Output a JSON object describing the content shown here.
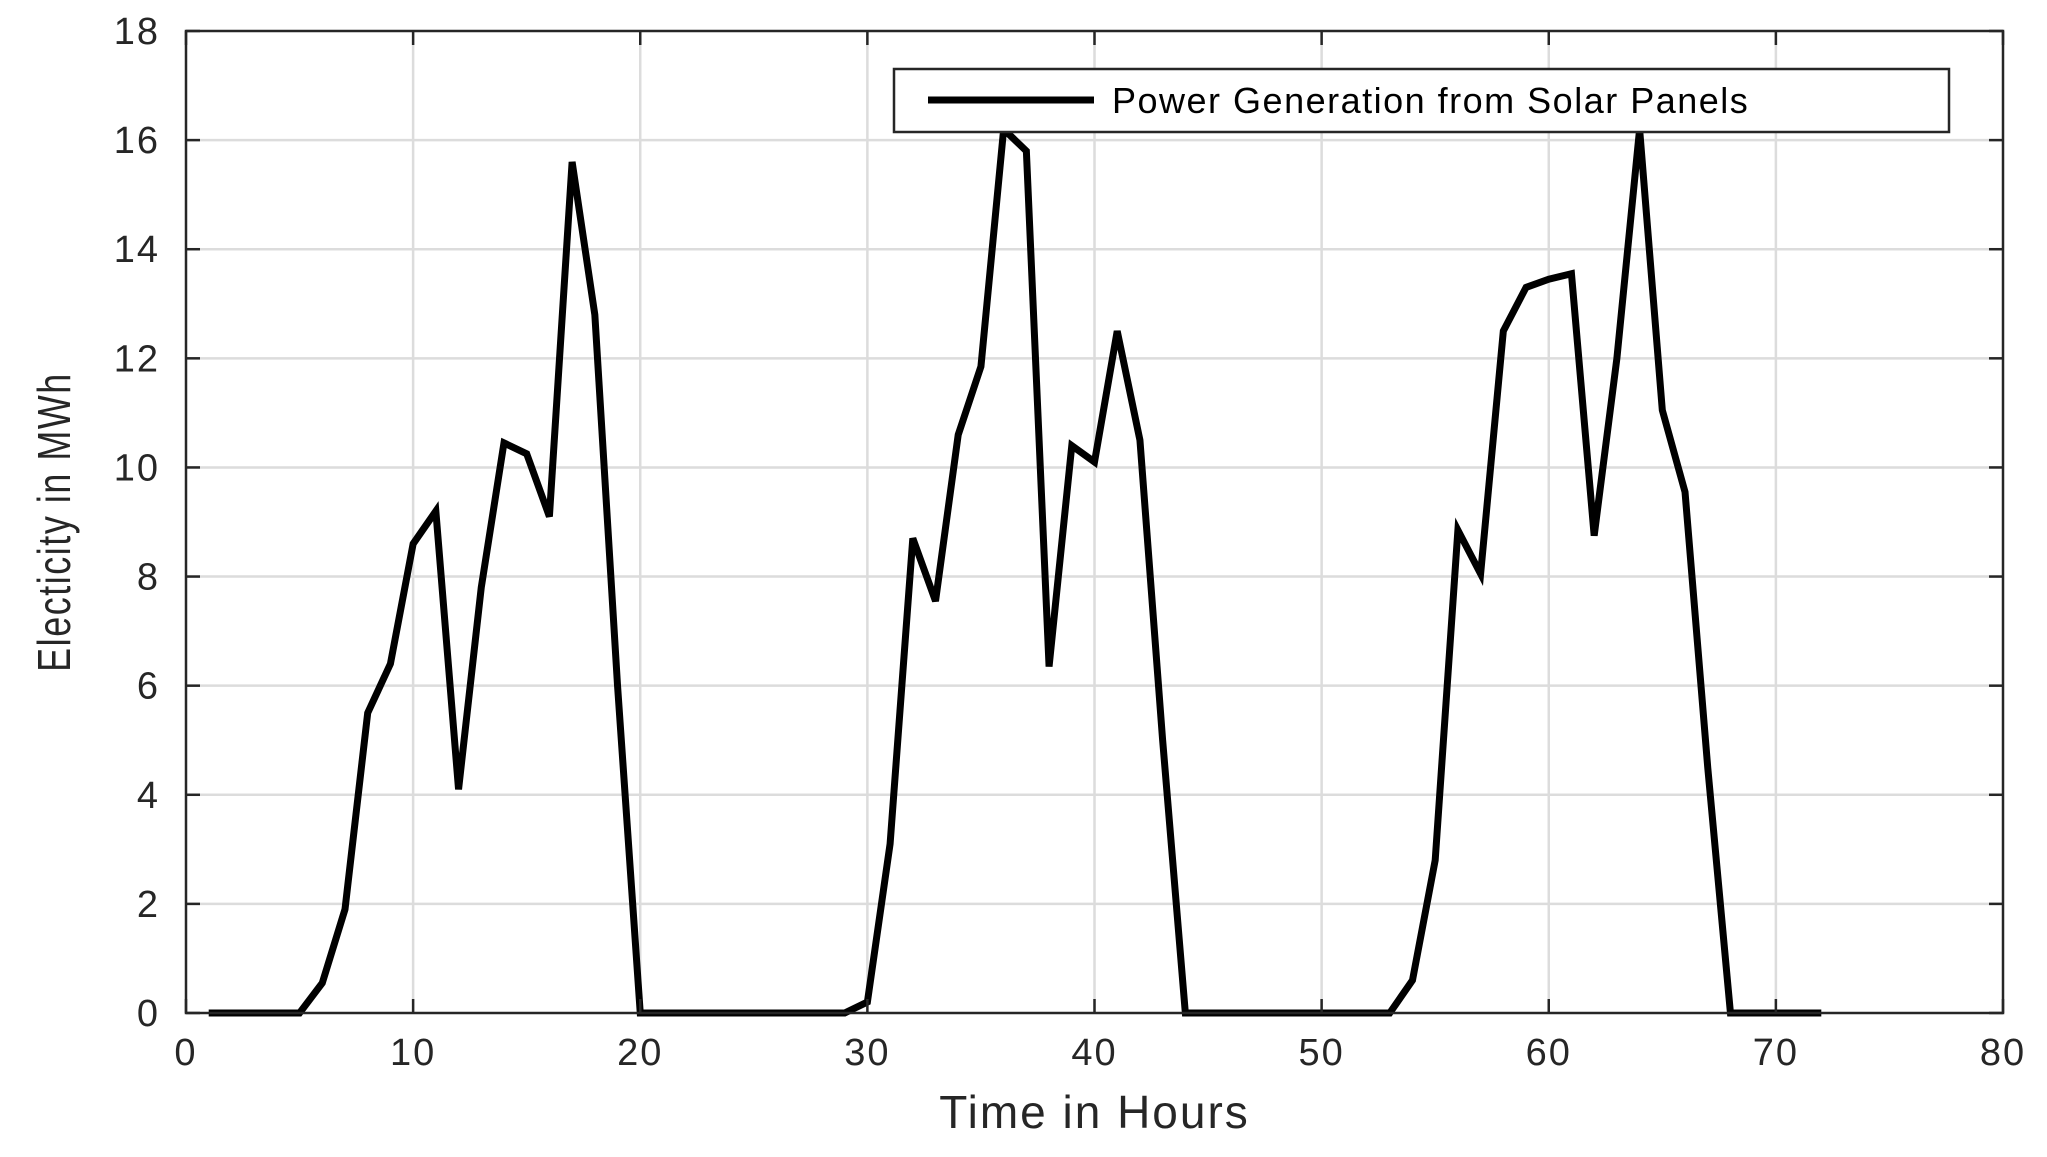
{
  "chart_data": {
    "type": "line",
    "xlabel": "Time in Hours",
    "ylabel": "Electicity in MWh",
    "xlim": [
      0,
      80
    ],
    "ylim": [
      0,
      18
    ],
    "xticks": [
      0,
      10,
      20,
      30,
      40,
      50,
      60,
      70,
      80
    ],
    "yticks": [
      0,
      2,
      4,
      6,
      8,
      10,
      12,
      14,
      16,
      18
    ],
    "grid": true,
    "legend_position": "top-right",
    "colors": {
      "series": "#000000",
      "grid": "#dcdcdc",
      "axis": "#262626"
    },
    "series": [
      {
        "name": "Power Generation from Solar Panels",
        "x": [
          1,
          2,
          3,
          4,
          5,
          6,
          7,
          8,
          9,
          10,
          11,
          12,
          13,
          14,
          15,
          16,
          17,
          18,
          19,
          20,
          21,
          22,
          23,
          24,
          25,
          26,
          27,
          28,
          29,
          30,
          31,
          32,
          33,
          34,
          35,
          36,
          37,
          38,
          39,
          40,
          41,
          42,
          43,
          44,
          45,
          46,
          47,
          48,
          49,
          50,
          51,
          52,
          53,
          54,
          55,
          56,
          57,
          58,
          59,
          60,
          61,
          62,
          63,
          64,
          65,
          66,
          67,
          68,
          69,
          70,
          71,
          72
        ],
        "y": [
          0,
          0,
          0,
          0,
          0,
          0.55,
          1.9,
          5.5,
          6.4,
          8.6,
          9.2,
          4.1,
          7.8,
          10.45,
          10.25,
          9.1,
          15.6,
          12.8,
          6,
          0,
          0,
          0,
          0,
          0,
          0,
          0,
          0,
          0,
          0,
          0.2,
          3.1,
          8.7,
          7.55,
          10.6,
          11.85,
          16.2,
          15.8,
          6.35,
          10.4,
          10.1,
          12.5,
          10.5,
          5,
          0,
          0,
          0,
          0,
          0,
          0,
          0,
          0,
          0,
          0,
          0.6,
          2.8,
          8.85,
          8.05,
          12.5,
          13.3,
          13.45,
          13.55,
          8.75,
          12,
          16.2,
          11.05,
          9.55,
          4.5,
          0,
          0,
          0,
          0,
          0
        ]
      }
    ]
  }
}
